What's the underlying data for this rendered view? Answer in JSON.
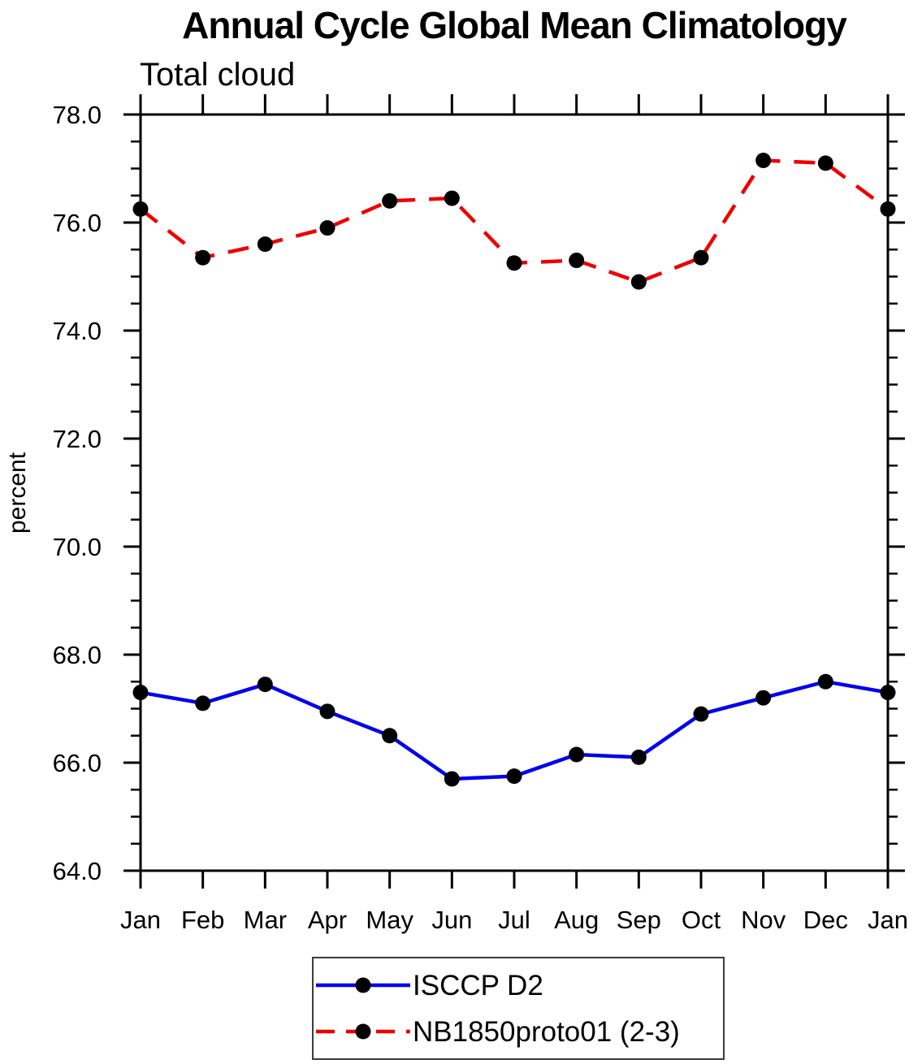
{
  "chart_data": {
    "type": "line",
    "title": "Annual Cycle Global Mean Climatology",
    "subtitle": "Total cloud",
    "ylabel": "percent",
    "xlabel": "",
    "categories": [
      "Jan",
      "Feb",
      "Mar",
      "Apr",
      "May",
      "Jun",
      "Jul",
      "Aug",
      "Sep",
      "Oct",
      "Nov",
      "Dec",
      "Jan"
    ],
    "ylim": [
      64.0,
      78.0
    ],
    "ytick_major_values": [
      64,
      66,
      68,
      70,
      72,
      74,
      76,
      78
    ],
    "ytick_labels": [
      "64.0",
      "66.0",
      "68.0",
      "70.0",
      "72.0",
      "74.0",
      "76.0",
      "78.0"
    ],
    "ytick_minor_step": 0.5,
    "grid": false,
    "legend_position": "bottom-center",
    "axis_color": "#000000",
    "marker": "filled-circle",
    "marker_color": "#000000",
    "series": [
      {
        "name": "ISCCP D2",
        "color": "#0000ee",
        "line_style": "solid",
        "values": [
          67.3,
          67.1,
          67.45,
          66.95,
          66.5,
          65.7,
          65.75,
          66.15,
          66.1,
          66.9,
          67.2,
          67.5,
          67.3
        ]
      },
      {
        "name": "NB1850proto01 (2-3)",
        "color": "#ee0000",
        "line_style": "dashed",
        "values": [
          76.25,
          75.35,
          75.6,
          75.9,
          76.4,
          76.45,
          75.25,
          75.3,
          74.9,
          75.35,
          77.15,
          77.1,
          76.25
        ]
      }
    ]
  }
}
